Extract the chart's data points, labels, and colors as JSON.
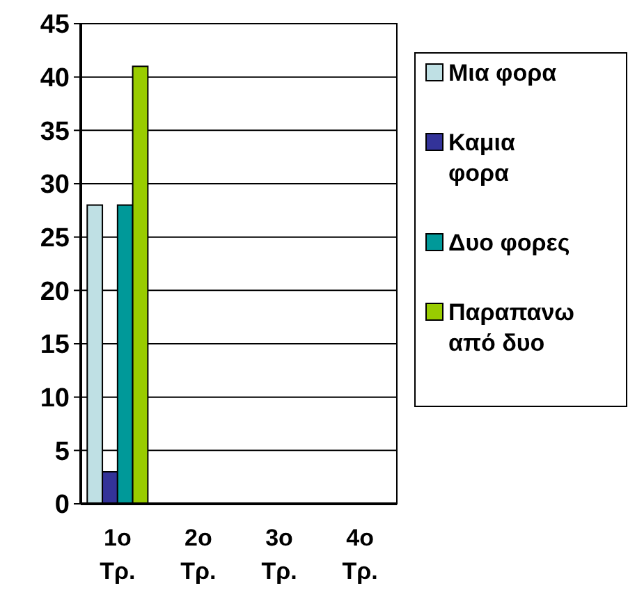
{
  "chart_data": {
    "type": "bar",
    "categories": [
      "1ο Τρ.",
      "2ο Τρ.",
      "3ο Τρ.",
      "4ο Τρ."
    ],
    "series": [
      {
        "name": "Μια φορα",
        "color": "#bfe0e4",
        "values": [
          28,
          0,
          0,
          0
        ]
      },
      {
        "name": "Καμια φορα",
        "color": "#333399",
        "values": [
          3,
          0,
          0,
          0
        ]
      },
      {
        "name": "Δυο φορες",
        "color": "#009999",
        "values": [
          28,
          0,
          0,
          0
        ]
      },
      {
        "name": "Παραπανω από δυο",
        "color": "#99cc00",
        "values": [
          41,
          0,
          0,
          0
        ]
      }
    ],
    "ylim": [
      0,
      45
    ],
    "yticks": [
      0,
      5,
      10,
      15,
      20,
      25,
      30,
      35,
      40,
      45
    ],
    "grid": "y",
    "legend": "right"
  }
}
